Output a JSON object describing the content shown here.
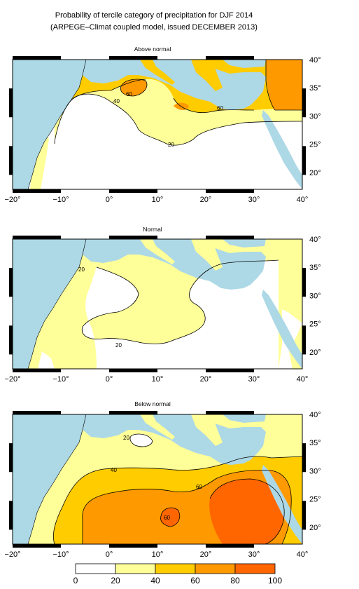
{
  "figure": {
    "title_line1": "Probability of tercile category of precipitation for DJF 2014",
    "title_line2": "(ARPEGE–Climat coupled model, issued DECEMBER 2013)"
  },
  "panels": [
    {
      "label": "Above normal",
      "contour_labels": [
        "60",
        "40",
        "60",
        "20"
      ]
    },
    {
      "label": "Normal",
      "contour_labels": [
        "20",
        "20"
      ]
    },
    {
      "label": "Below normal",
      "contour_labels": [
        "20",
        "40",
        "60",
        "60"
      ]
    }
  ],
  "axes": {
    "lon_ticks": [
      "−20°",
      "−10°",
      "0°",
      "10°",
      "20°",
      "30°",
      "40°"
    ],
    "lat_ticks": [
      "40°",
      "35°",
      "30°",
      "25°",
      "20°"
    ]
  },
  "colorbar": {
    "ticks": [
      "0",
      "20",
      "40",
      "60",
      "80",
      "100"
    ],
    "colors": [
      "#ffffff",
      "#ffff99",
      "#ffcc00",
      "#ff9900",
      "#ff6600"
    ]
  },
  "colors": {
    "water": "#add8e6",
    "cat_0_20": "#ffffff",
    "cat_20_40": "#ffff99",
    "cat_40_60": "#ffcc00",
    "cat_60_80": "#ff9900",
    "cat_80_100": "#ff6600"
  }
}
